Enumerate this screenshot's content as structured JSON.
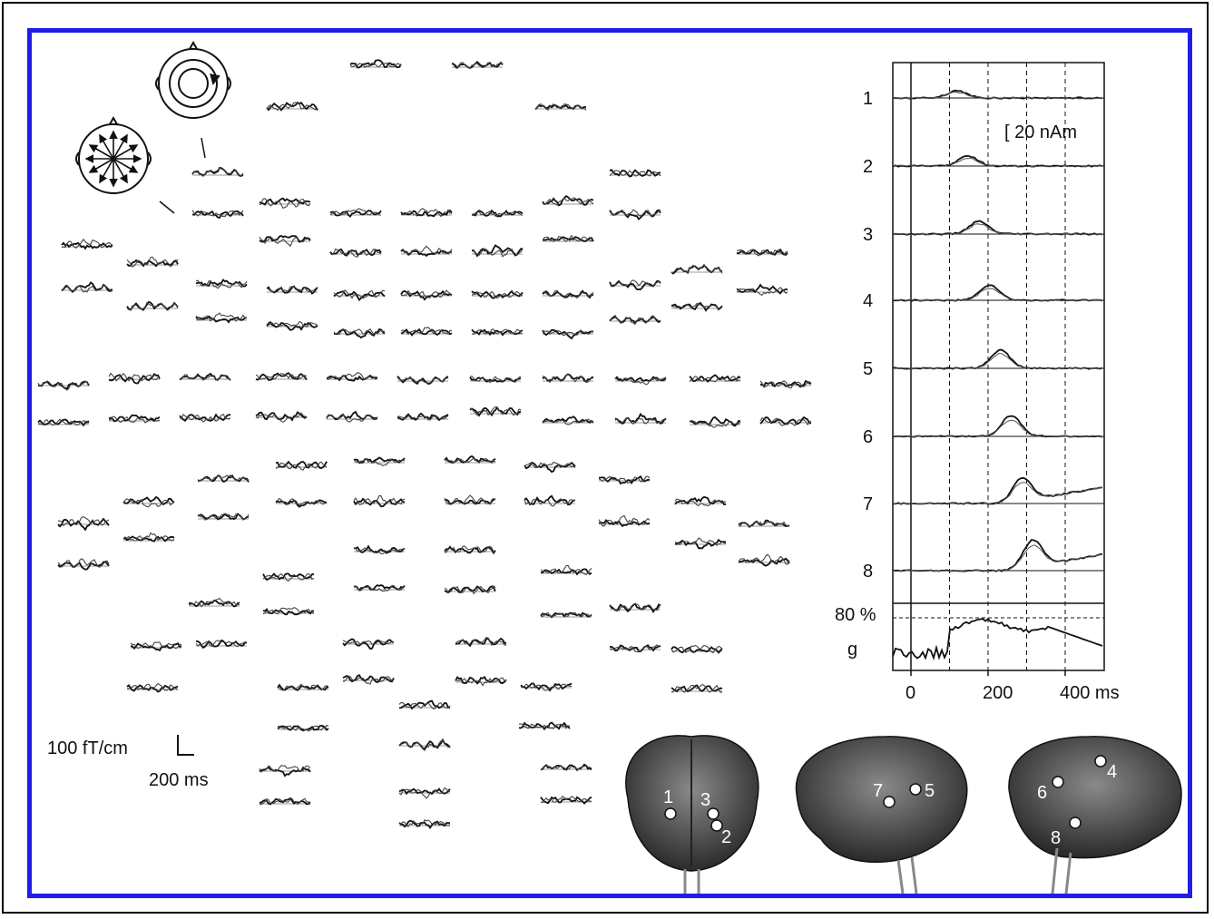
{
  "scale_bar": {
    "amplitude_label": "100 fT/cm",
    "time_label": "200 ms"
  },
  "source_panel": {
    "amplitude_scale_label": "[ 20 nAm",
    "source_labels": [
      "1",
      "2",
      "3",
      "4",
      "5",
      "6",
      "7",
      "8"
    ],
    "goodness_label": "80 %",
    "goodness_symbol": "g",
    "x_tick_labels": [
      "0",
      "200",
      "400 ms"
    ],
    "x_ticks": [
      0,
      200,
      400
    ],
    "x_range": [
      -50,
      500
    ]
  },
  "brains": {
    "views": [
      {
        "view": "posterior",
        "labels": [
          "1",
          "3",
          "2"
        ]
      },
      {
        "view": "right-lateral",
        "labels": [
          "7",
          "5"
        ]
      },
      {
        "view": "left-lateral",
        "labels": [
          "6",
          "4",
          "8"
        ]
      }
    ]
  },
  "colors": {
    "frame": "#1e1ee6",
    "trace": "#111111",
    "brain_fill": "#555555"
  }
}
